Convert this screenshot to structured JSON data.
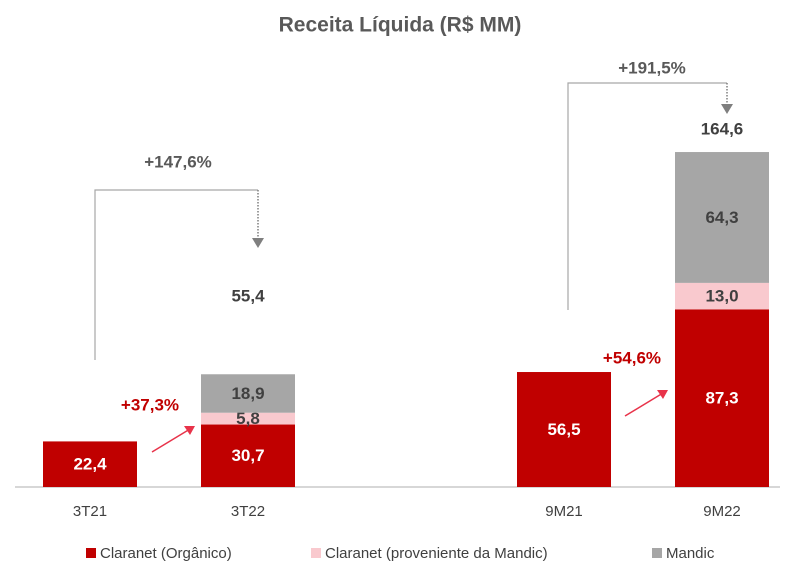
{
  "chart_data": {
    "type": "stacked_bar",
    "title": "Receita Líquida (R$ MM)",
    "categories": [
      "3T21",
      "3T22",
      null,
      "9M21",
      "9M22"
    ],
    "series": [
      {
        "name": "Claranet (Orgânico)",
        "color": "#c00000",
        "values": [
          22.4,
          30.7,
          null,
          56.5,
          87.3
        ],
        "value_labels": [
          "22,4",
          "30,7",
          null,
          "56,5",
          "87,3"
        ]
      },
      {
        "name": "Claranet (proveniente da Mandic)",
        "color": "#f9c9ce",
        "values": [
          null,
          5.8,
          null,
          null,
          13.0
        ],
        "value_labels": [
          null,
          "5,8",
          null,
          null,
          "13,0"
        ]
      },
      {
        "name": "Mandic",
        "color": "#a6a6a6",
        "values": [
          null,
          18.9,
          null,
          null,
          64.3
        ],
        "value_labels": [
          null,
          "18,9",
          null,
          null,
          "64,3"
        ]
      }
    ],
    "totals": [
      null,
      55.4,
      null,
      null,
      164.6
    ],
    "total_labels": [
      null,
      "55,4",
      null,
      null,
      "164,6"
    ],
    "annotations": [
      {
        "text": "+147,6%"
      },
      {
        "text": "+191,5%"
      },
      {
        "text": "+37,3%"
      },
      {
        "text": "+54,6%"
      }
    ],
    "ylim": [
      0,
      180
    ],
    "legend": "bottom"
  }
}
